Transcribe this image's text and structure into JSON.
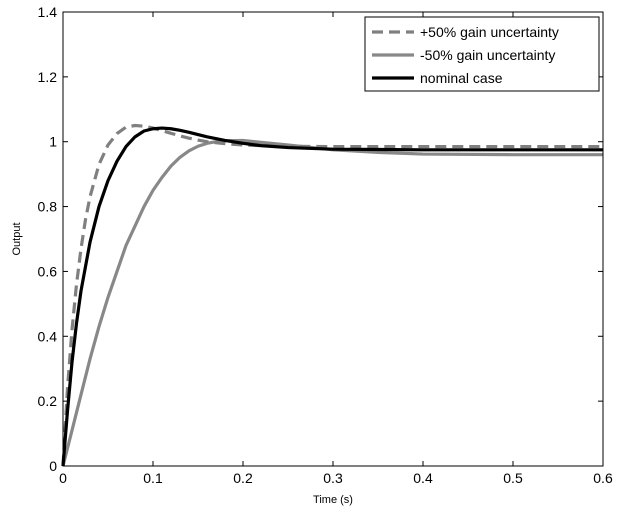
{
  "chart_data": {
    "type": "line",
    "title": "",
    "xlabel": "Time (s)",
    "ylabel": "Output",
    "xlim": [
      0,
      0.6
    ],
    "ylim": [
      0,
      1.4
    ],
    "xticks": [
      0,
      0.1,
      0.2,
      0.3,
      0.4,
      0.5,
      0.6
    ],
    "xtick_labels": [
      "0",
      "0.1",
      "0.2",
      "0.3",
      "0.4",
      "0.5",
      "0.6"
    ],
    "yticks": [
      0,
      0.2,
      0.4,
      0.6,
      0.8,
      1,
      1.2,
      1.4
    ],
    "ytick_labels": [
      "0",
      "0.2",
      "0.4",
      "0.6",
      "0.8",
      "1",
      "1.2",
      "1.4"
    ],
    "grid": false,
    "legend_position": "top-right",
    "series": [
      {
        "name": "+50% gain uncertainty",
        "color": "#808080",
        "style": "dashed",
        "x": [
          0,
          0.005,
          0.01,
          0.015,
          0.02,
          0.025,
          0.03,
          0.04,
          0.05,
          0.06,
          0.07,
          0.08,
          0.09,
          0.1,
          0.11,
          0.12,
          0.13,
          0.14,
          0.15,
          0.16,
          0.18,
          0.2,
          0.22,
          0.25,
          0.3,
          0.4,
          0.5,
          0.6
        ],
        "y": [
          0,
          0.24,
          0.42,
          0.56,
          0.67,
          0.76,
          0.83,
          0.93,
          0.99,
          1.025,
          1.045,
          1.05,
          1.048,
          1.042,
          1.034,
          1.026,
          1.018,
          1.011,
          1.005,
          1.0,
          0.994,
          0.99,
          0.988,
          0.986,
          0.985,
          0.985,
          0.985,
          0.985
        ]
      },
      {
        "name": "-50% gain uncertainty",
        "color": "#888888",
        "style": "solid",
        "x": [
          0,
          0.01,
          0.02,
          0.03,
          0.04,
          0.05,
          0.06,
          0.07,
          0.08,
          0.09,
          0.1,
          0.11,
          0.12,
          0.13,
          0.14,
          0.15,
          0.16,
          0.17,
          0.18,
          0.2,
          0.22,
          0.25,
          0.3,
          0.35,
          0.4,
          0.5,
          0.6
        ],
        "y": [
          0,
          0.11,
          0.22,
          0.33,
          0.43,
          0.52,
          0.6,
          0.68,
          0.74,
          0.8,
          0.85,
          0.89,
          0.925,
          0.952,
          0.972,
          0.986,
          0.995,
          1.0,
          1.003,
          1.004,
          0.998,
          0.99,
          0.975,
          0.967,
          0.962,
          0.96,
          0.96
        ]
      },
      {
        "name": "nominal case",
        "color": "#000000",
        "style": "solid",
        "x": [
          0,
          0.005,
          0.01,
          0.015,
          0.02,
          0.03,
          0.04,
          0.05,
          0.06,
          0.07,
          0.08,
          0.09,
          0.1,
          0.11,
          0.12,
          0.13,
          0.14,
          0.15,
          0.16,
          0.18,
          0.2,
          0.22,
          0.25,
          0.3,
          0.4,
          0.5,
          0.6
        ],
        "y": [
          0,
          0.17,
          0.32,
          0.44,
          0.54,
          0.69,
          0.8,
          0.88,
          0.94,
          0.985,
          1.015,
          1.033,
          1.04,
          1.042,
          1.04,
          1.035,
          1.029,
          1.022,
          1.015,
          1.004,
          0.995,
          0.988,
          0.982,
          0.977,
          0.975,
          0.975,
          0.975
        ]
      }
    ]
  }
}
